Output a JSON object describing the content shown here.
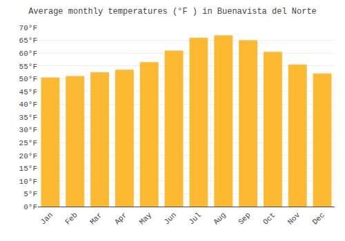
{
  "chart_data": {
    "type": "bar",
    "title": "Average monthly temperatures (°F ) in Buenavista del Norte",
    "categories": [
      "Jan",
      "Feb",
      "Mar",
      "Apr",
      "May",
      "Jun",
      "Jul",
      "Aug",
      "Sep",
      "Oct",
      "Nov",
      "Dec"
    ],
    "values": [
      50.5,
      51.0,
      52.5,
      53.5,
      56.5,
      61.0,
      66.0,
      67.0,
      65.0,
      60.5,
      55.5,
      52.0
    ],
    "color": "#FDB931",
    "ylim": [
      0,
      70
    ],
    "yticks": [
      {
        "value": 0,
        "label": "0°F"
      },
      {
        "value": 5,
        "label": "5°F"
      },
      {
        "value": 10,
        "label": "10°F"
      },
      {
        "value": 15,
        "label": "15°F"
      },
      {
        "value": 20,
        "label": "20°F"
      },
      {
        "value": 25,
        "label": "25°F"
      },
      {
        "value": 30,
        "label": "30°F"
      },
      {
        "value": 35,
        "label": "35°F"
      },
      {
        "value": 40,
        "label": "40°F"
      },
      {
        "value": 45,
        "label": "45°F"
      },
      {
        "value": 50,
        "label": "50°F"
      },
      {
        "value": 55,
        "label": "55°F"
      },
      {
        "value": 60,
        "label": "60°F"
      },
      {
        "value": 65,
        "label": "65°F"
      },
      {
        "value": 70,
        "label": "70°F"
      }
    ],
    "grid": true
  }
}
